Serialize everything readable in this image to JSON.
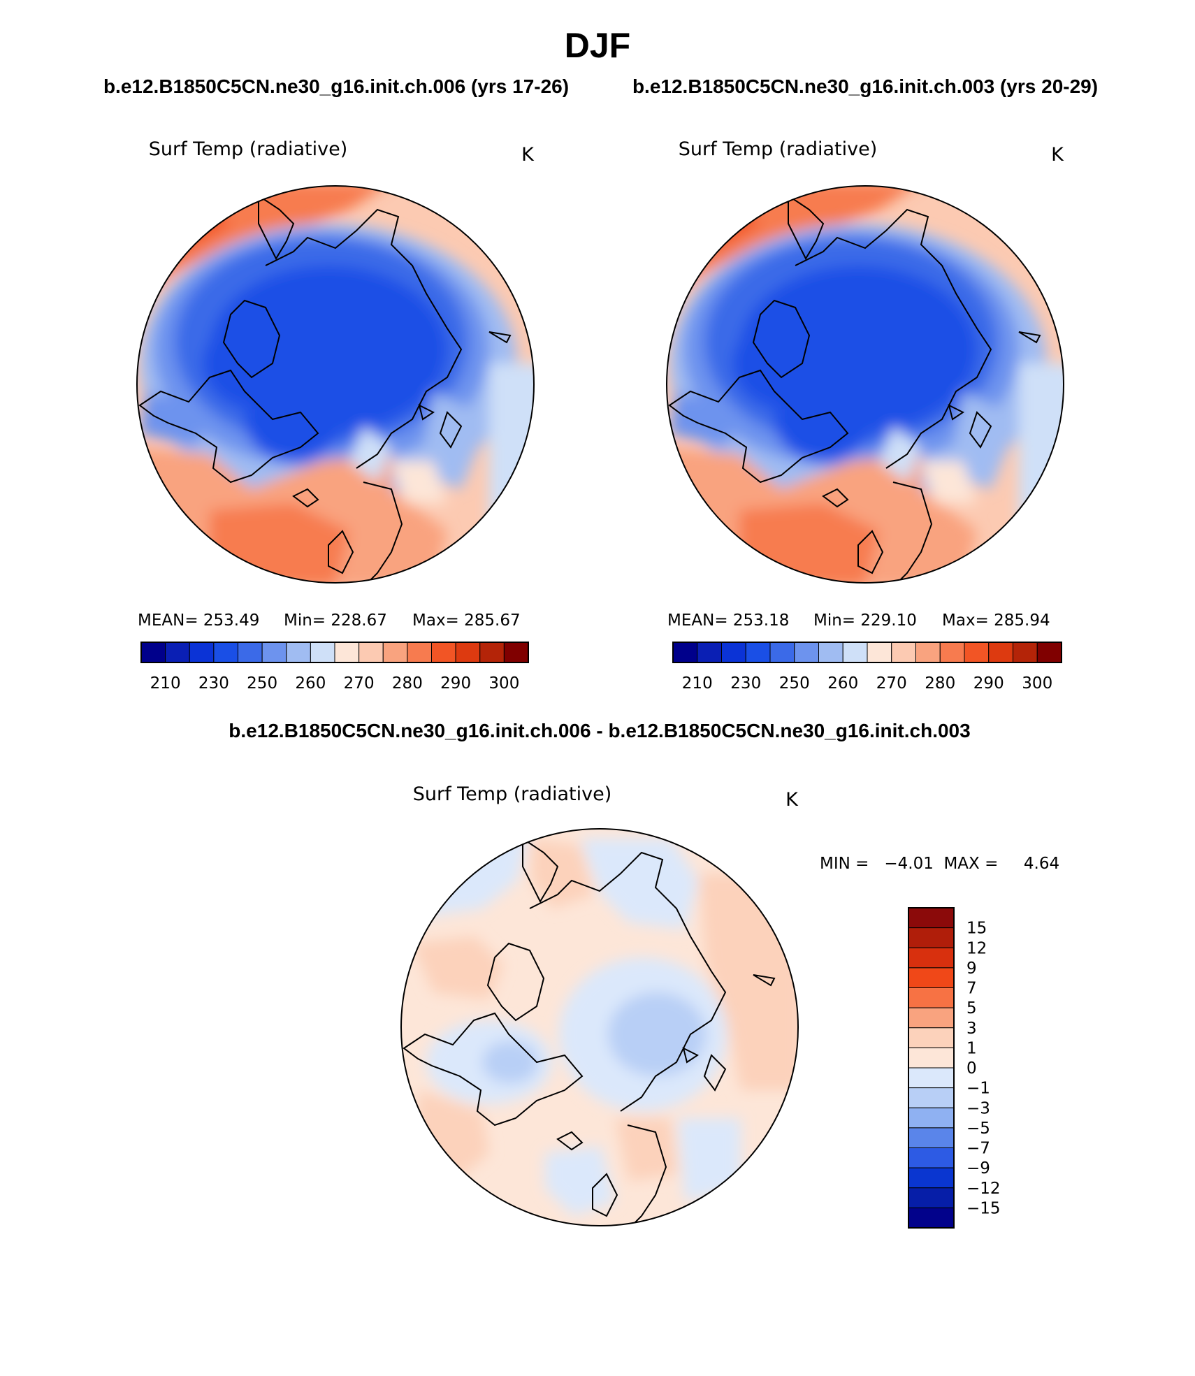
{
  "figure": {
    "season": "DJF",
    "case_a_title": "b.e12.B1850C5CN.ne30_g16.init.ch.006 (yrs 17-26)",
    "case_b_title": "b.e12.B1850C5CN.ne30_g16.init.ch.003 (yrs 20-29)",
    "diff_title": "b.e12.B1850C5CN.ne30_g16.init.ch.006 - b.e12.B1850C5CN.ne30_g16.init.ch.003"
  },
  "chart_data": [
    {
      "type": "heatmap",
      "projection": "north polar stereographic",
      "title": "Surf Temp (radiative)",
      "units": "K",
      "stats": {
        "mean_text": "MEAN= 253.49",
        "min_text": "Min= 228.67",
        "max_text": "Max= 285.67"
      },
      "mean": 253.49,
      "min": 228.67,
      "max": 285.67,
      "colorbar": {
        "levels": [
          210,
          220,
          230,
          240,
          250,
          255,
          260,
          265,
          270,
          275,
          280,
          285,
          290,
          295,
          300
        ],
        "tick_labels": [
          "210",
          "230",
          "250",
          "260",
          "270",
          "280",
          "290",
          "300"
        ],
        "colors": [
          "#00008b",
          "#0a1fb4",
          "#0b33d6",
          "#1a4fe6",
          "#3b6ae8",
          "#6d93ee",
          "#a0bcf2",
          "#cfe0f8",
          "#fde6d8",
          "#fccab2",
          "#f9a37f",
          "#f77b4f",
          "#f25525",
          "#dd3a10",
          "#b42408",
          "#800000"
        ]
      }
    },
    {
      "type": "heatmap",
      "projection": "north polar stereographic",
      "title": "Surf Temp (radiative)",
      "units": "K",
      "stats": {
        "mean_text": "MEAN= 253.18",
        "min_text": "Min= 229.10",
        "max_text": "Max= 285.94"
      },
      "mean": 253.18,
      "min": 229.1,
      "max": 285.94,
      "colorbar": {
        "levels": [
          210,
          220,
          230,
          240,
          250,
          255,
          260,
          265,
          270,
          275,
          280,
          285,
          290,
          295,
          300
        ],
        "tick_labels": [
          "210",
          "230",
          "250",
          "260",
          "270",
          "280",
          "290",
          "300"
        ],
        "colors": [
          "#00008b",
          "#0a1fb4",
          "#0b33d6",
          "#1a4fe6",
          "#3b6ae8",
          "#6d93ee",
          "#a0bcf2",
          "#cfe0f8",
          "#fde6d8",
          "#fccab2",
          "#f9a37f",
          "#f77b4f",
          "#f25525",
          "#dd3a10",
          "#b42408",
          "#800000"
        ]
      }
    },
    {
      "type": "heatmap",
      "projection": "north polar stereographic",
      "title": "Surf Temp (radiative)",
      "units": "K",
      "stats": {
        "min_max_text": "MIN =   −4.01  MAX =     4.64"
      },
      "min": -4.01,
      "max": 4.64,
      "colorbar": {
        "orientation": "vertical",
        "levels": [
          15,
          12,
          9,
          7,
          5,
          3,
          1,
          0,
          -1,
          -3,
          -5,
          -7,
          -9,
          -12,
          -15
        ],
        "tick_labels": [
          "15",
          "12",
          "9",
          "7",
          "5",
          "3",
          "1",
          "0",
          "−1",
          "−3",
          "−5",
          "−7",
          "−9",
          "−12",
          "−15"
        ],
        "colors_top_to_bottom": [
          "#8b0a0a",
          "#b01e0a",
          "#d8300e",
          "#f04818",
          "#f77244",
          "#f9a37f",
          "#fcd2bb",
          "#fde6d8",
          "#dbe8fb",
          "#b8cff6",
          "#8fb1f2",
          "#5a85ea",
          "#2d5be4",
          "#0a36d0",
          "#061ea8",
          "#02028b"
        ]
      }
    }
  ]
}
